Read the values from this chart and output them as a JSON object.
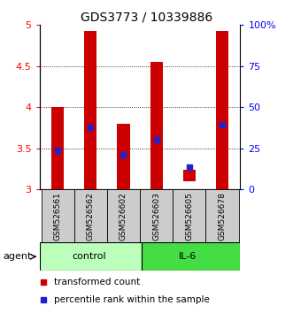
{
  "title": "GDS3773 / 10339886",
  "samples": [
    "GSM526561",
    "GSM526562",
    "GSM526602",
    "GSM526603",
    "GSM526605",
    "GSM526678"
  ],
  "groups": [
    "control",
    "control",
    "control",
    "IL-6",
    "IL-6",
    "IL-6"
  ],
  "bar_bottoms": [
    3.0,
    3.0,
    3.0,
    3.0,
    3.1,
    3.0
  ],
  "bar_tops": [
    4.0,
    4.93,
    3.8,
    4.55,
    3.24,
    4.93
  ],
  "percentile_values": [
    3.48,
    3.76,
    3.42,
    3.6,
    3.27,
    3.79
  ],
  "ylim": [
    3.0,
    5.0
  ],
  "y_ticks": [
    3.0,
    3.5,
    4.0,
    4.5,
    5.0
  ],
  "y_tick_labels": [
    "3",
    "3.5",
    "4",
    "4.5",
    "5"
  ],
  "right_y_tick_labels": [
    "0",
    "25",
    "50",
    "75",
    "100%"
  ],
  "bar_color": "#cc0000",
  "percentile_color": "#2222cc",
  "control_group_color": "#bbffbb",
  "il6_group_color": "#44dd44",
  "sample_bg_color": "#cccccc",
  "agent_label": "agent",
  "control_label": "control",
  "il6_label": "IL-6",
  "legend_items": [
    "transformed count",
    "percentile rank within the sample"
  ],
  "bar_width": 0.38,
  "figsize": [
    3.31,
    3.54
  ],
  "dpi": 100
}
